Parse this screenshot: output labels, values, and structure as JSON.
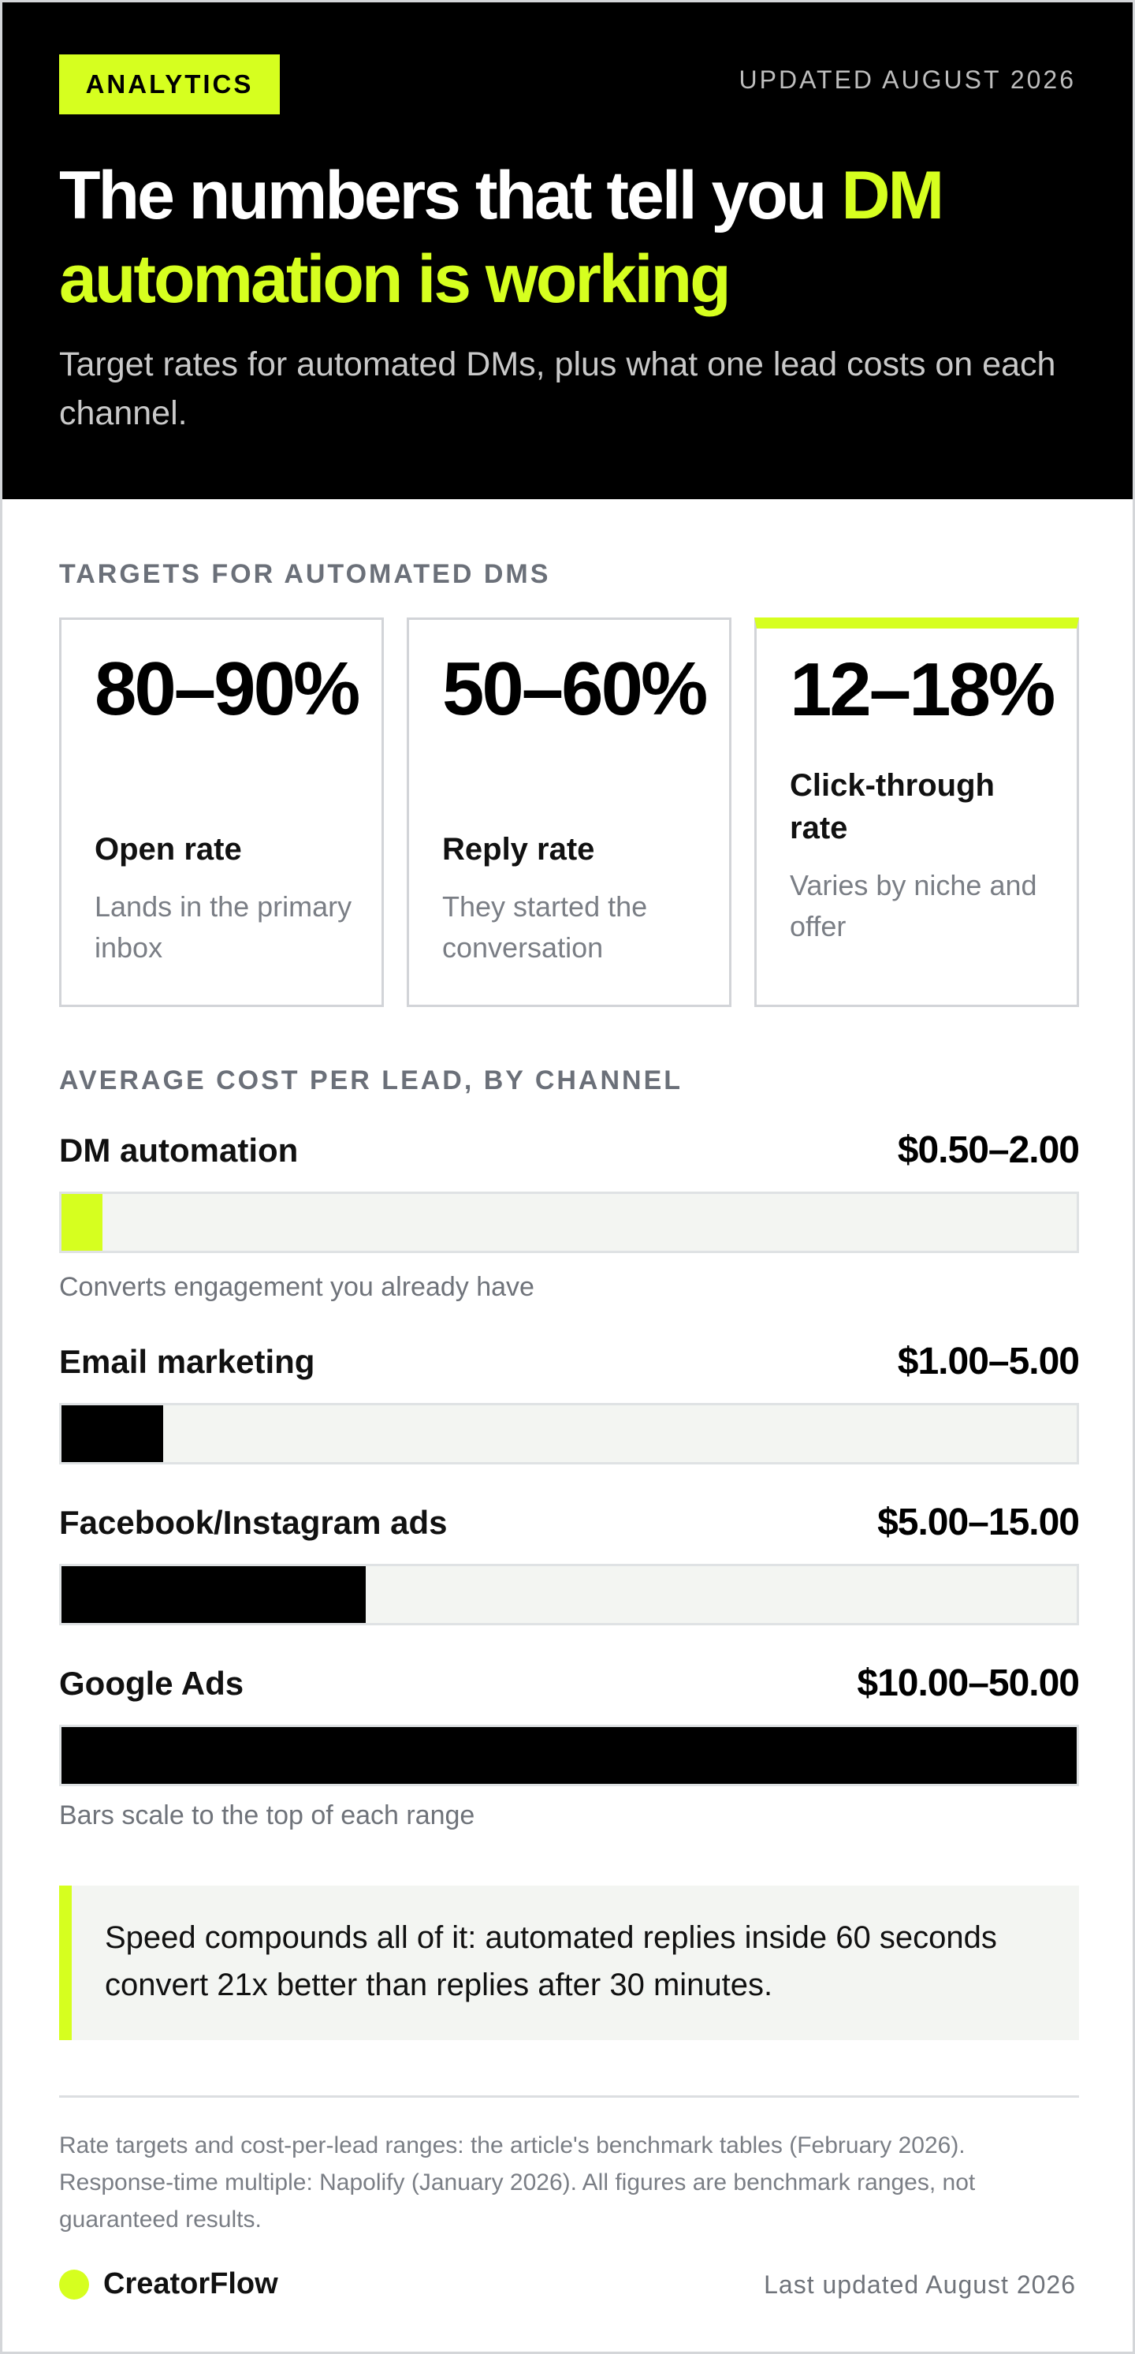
{
  "header": {
    "badge": "ANALYTICS",
    "updated": "UPDATED AUGUST 2026",
    "headline_plain": "The numbers that tell you ",
    "headline_accent": "DM automation is working",
    "subhead": "Target rates for automated DMs, plus what one lead costs on each channel."
  },
  "targets": {
    "label": "TARGETS FOR AUTOMATED DMS",
    "cards": [
      {
        "value": "80–90%",
        "title": "Open rate",
        "desc": "Lands in the primary inbox"
      },
      {
        "value": "50–60%",
        "title": "Reply rate",
        "desc": "They started the conversation"
      },
      {
        "value": "12–18%",
        "title": "Click-through rate",
        "desc": "Varies by niche and offer"
      }
    ]
  },
  "costs": {
    "label": "AVERAGE COST PER LEAD, BY CHANNEL",
    "scale_note": "Bars scale to the top of each range"
  },
  "chart_data": {
    "type": "bar",
    "orientation": "horizontal",
    "title": "AVERAGE COST PER LEAD, BY CHANNEL",
    "unit": "USD per lead",
    "xlim": [
      0,
      50
    ],
    "categories": [
      "DM automation",
      "Email marketing",
      "Facebook/Instagram ads",
      "Google Ads"
    ],
    "range_labels": [
      "$0.50–2.00",
      "$1.00–5.00",
      "$5.00–15.00",
      "$10.00–50.00"
    ],
    "range_low": [
      0.5,
      1.0,
      5.0,
      10.0
    ],
    "range_high": [
      2.0,
      5.0,
      15.0,
      50.0
    ],
    "values": [
      2.0,
      5.0,
      15.0,
      50.0
    ],
    "notes": [
      "Converts engagement you already have",
      "",
      "",
      ""
    ],
    "highlight_category": "DM automation",
    "colors": {
      "highlight": "#d6ff1f",
      "default": "#000000",
      "track": "#f3f5f2"
    }
  },
  "callout": {
    "text": "Speed compounds all of it: automated replies inside 60 seconds convert 21x better than replies after 30 minutes."
  },
  "footer": {
    "source": "Rate targets and cost-per-lead ranges: the article's benchmark tables (February 2026). Response-time multiple: Napolify (January 2026). All figures are benchmark ranges, not guaranteed results.",
    "brand": "CreatorFlow",
    "updated": "Last updated August 2026"
  },
  "colors": {
    "accent": "#d6ff1f",
    "ink": "#000000",
    "muted": "#6f737a"
  }
}
